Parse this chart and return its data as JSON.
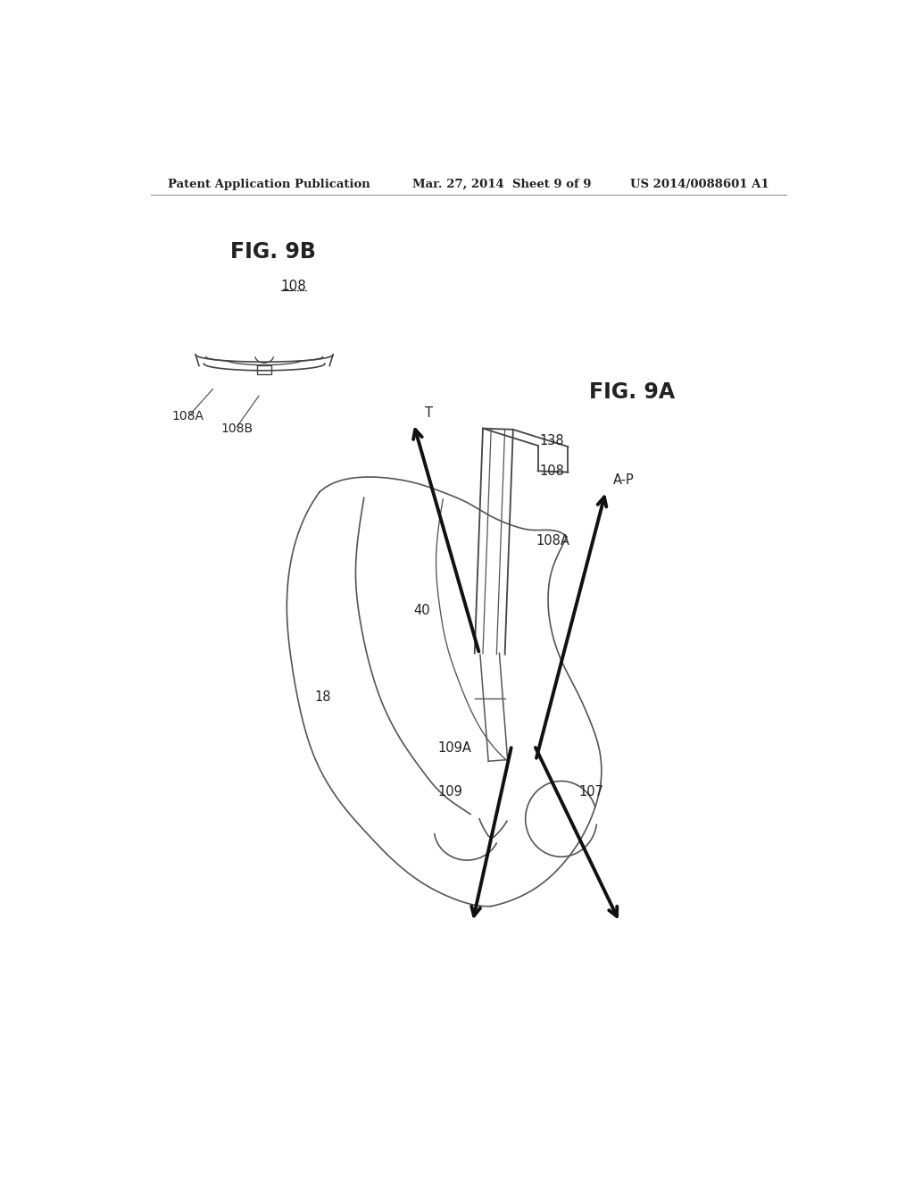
{
  "header_left": "Patent Application Publication",
  "header_center": "Mar. 27, 2014  Sheet 9 of 9",
  "header_right": "US 2014/0088601 A1",
  "fig9b_title": "FIG. 9B",
  "fig9a_title": "FIG. 9A",
  "label_108": "108",
  "label_108A_9b": "108A",
  "label_108B": "108B",
  "label_138": "138",
  "label_108_9a": "108",
  "label_108A_9a": "108A",
  "label_40": "40",
  "label_18": "18",
  "label_109A": "109A",
  "label_109": "109",
  "label_107": "107",
  "label_T": "T",
  "label_AP": "A-P",
  "bg_color": "#ffffff",
  "line_color": "#555555",
  "text_color": "#222222"
}
